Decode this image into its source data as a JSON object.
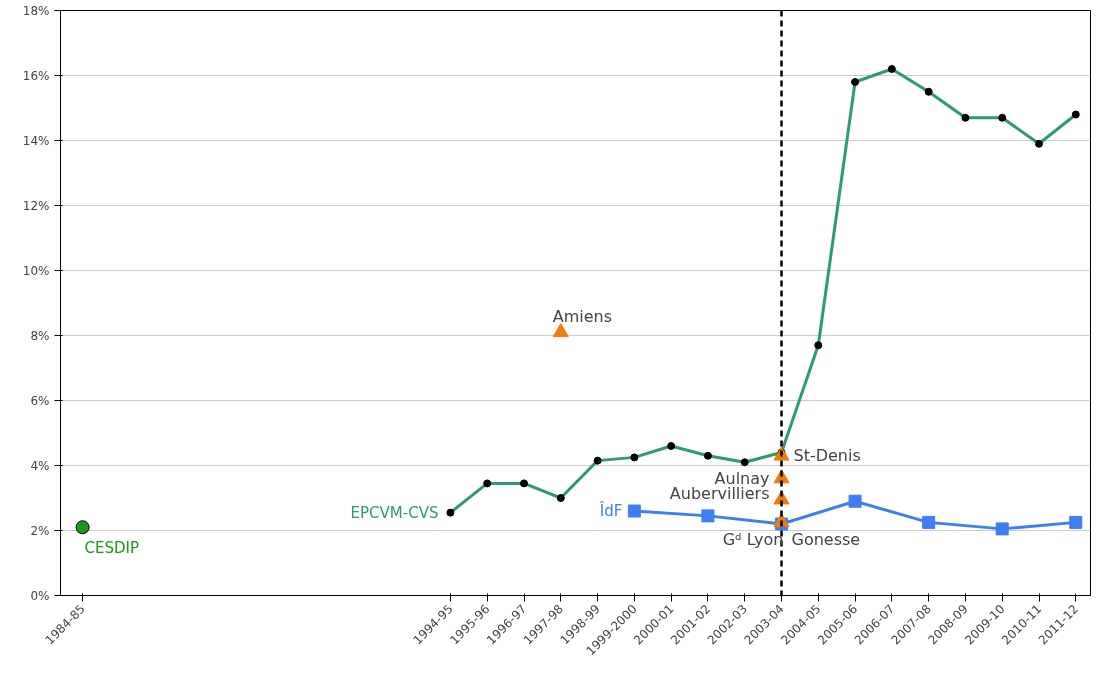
{
  "chart_data": {
    "type": "line",
    "categories": [
      "1984-85",
      null,
      null,
      null,
      null,
      null,
      null,
      null,
      null,
      null,
      "1994-95",
      "1995-96",
      "1996-97",
      "1997-98",
      "1998-99",
      "1999-2000",
      "2000-01",
      "2001-02",
      "2002-03",
      "2003-04",
      "2004-05",
      "2005-06",
      "2006-07",
      "2007-08",
      "2008-09",
      "2009-10",
      "2010-11",
      "2011-12"
    ],
    "series": [
      {
        "name": "EPCVM-CVS",
        "color": "#2e9b6a",
        "marker": "circle",
        "values": [
          null,
          null,
          null,
          null,
          null,
          null,
          null,
          null,
          null,
          null,
          2.55,
          3.45,
          3.45,
          3.0,
          4.15,
          4.25,
          4.6,
          4.3,
          4.1,
          4.4,
          7.7,
          15.8,
          16.2,
          15.5,
          14.7,
          14.7,
          13.9,
          14.8
        ]
      },
      {
        "name": "ÎdF",
        "color": "#3d7ff0",
        "marker": "square",
        "values": [
          null,
          null,
          null,
          null,
          null,
          null,
          null,
          null,
          null,
          null,
          null,
          null,
          null,
          null,
          null,
          2.6,
          null,
          2.45,
          null,
          2.2,
          null,
          2.9,
          null,
          2.25,
          null,
          2.05,
          null,
          2.25
        ]
      },
      {
        "name": "CESDIP",
        "color": "#1a9a1a",
        "type": "scatter",
        "marker": "circle",
        "values": [
          2.1,
          null,
          null,
          null,
          null,
          null,
          null,
          null,
          null,
          null,
          null,
          null,
          null,
          null,
          null,
          null,
          null,
          null,
          null,
          null,
          null,
          null,
          null,
          null,
          null,
          null,
          null,
          null
        ]
      },
      {
        "color": "#f07a10",
        "type": "scatter",
        "marker": "triangle",
        "values": [
          null,
          null,
          null,
          null,
          null,
          null,
          null,
          null,
          null,
          null,
          null,
          null,
          null,
          8.1,
          null,
          null,
          null,
          null,
          null,
          4.3,
          null,
          null,
          null,
          null,
          null,
          null,
          null,
          null
        ]
      },
      {
        "color": "#f07a10",
        "type": "scatter",
        "marker": "triangle",
        "values": [
          null,
          null,
          null,
          null,
          null,
          null,
          null,
          null,
          null,
          null,
          null,
          null,
          null,
          null,
          null,
          null,
          null,
          null,
          null,
          3.6,
          null,
          null,
          null,
          null,
          null,
          null,
          null,
          null
        ]
      },
      {
        "color": "#f07a10",
        "type": "scatter",
        "marker": "triangle",
        "values": [
          null,
          null,
          null,
          null,
          null,
          null,
          null,
          null,
          null,
          null,
          null,
          null,
          null,
          null,
          null,
          null,
          null,
          null,
          null,
          2.95,
          null,
          null,
          null,
          null,
          null,
          null,
          null,
          null
        ]
      },
      {
        "color": "#f07a10",
        "type": "scatter",
        "marker": "triangle",
        "values": [
          null,
          null,
          null,
          null,
          null,
          null,
          null,
          null,
          null,
          null,
          null,
          null,
          null,
          null,
          null,
          null,
          null,
          null,
          null,
          2.25,
          null,
          null,
          null,
          null,
          null,
          null,
          null,
          null
        ]
      }
    ],
    "ref_lines": [
      {
        "axis": "x",
        "value": "2003-04",
        "color": "#000000",
        "line_style": "dashed"
      }
    ],
    "annotations": [
      {
        "text": "Amiens",
        "x": "1997-98",
        "y": 8.1
      },
      {
        "text": "St-Denis",
        "x": "2003-04",
        "y": 4.3
      },
      {
        "text": "Aulnay",
        "x": "2003-04",
        "y": 3.6
      },
      {
        "text": "Aubervilliers",
        "x": "2003-04",
        "y": 2.95
      },
      {
        "text": "Gonesse",
        "x": "2003-04",
        "y": 2.25
      },
      {
        "text": "Gᵈ Lyon",
        "x": "2003-04",
        "y": 2.25
      }
    ],
    "ylim": [
      0,
      18
    ],
    "yticks": [
      {
        "value": 0,
        "label": "0%"
      },
      {
        "value": 2,
        "label": "2%"
      },
      {
        "value": 4,
        "label": "4%"
      },
      {
        "value": 6,
        "label": "6%"
      },
      {
        "value": 8,
        "label": "8%"
      },
      {
        "value": 10,
        "label": "10%"
      },
      {
        "value": 12,
        "label": "12%"
      },
      {
        "value": 14,
        "label": "14%"
      },
      {
        "value": 16,
        "label": "16%"
      },
      {
        "value": 18,
        "label": "18%"
      }
    ],
    "grid": "y"
  }
}
